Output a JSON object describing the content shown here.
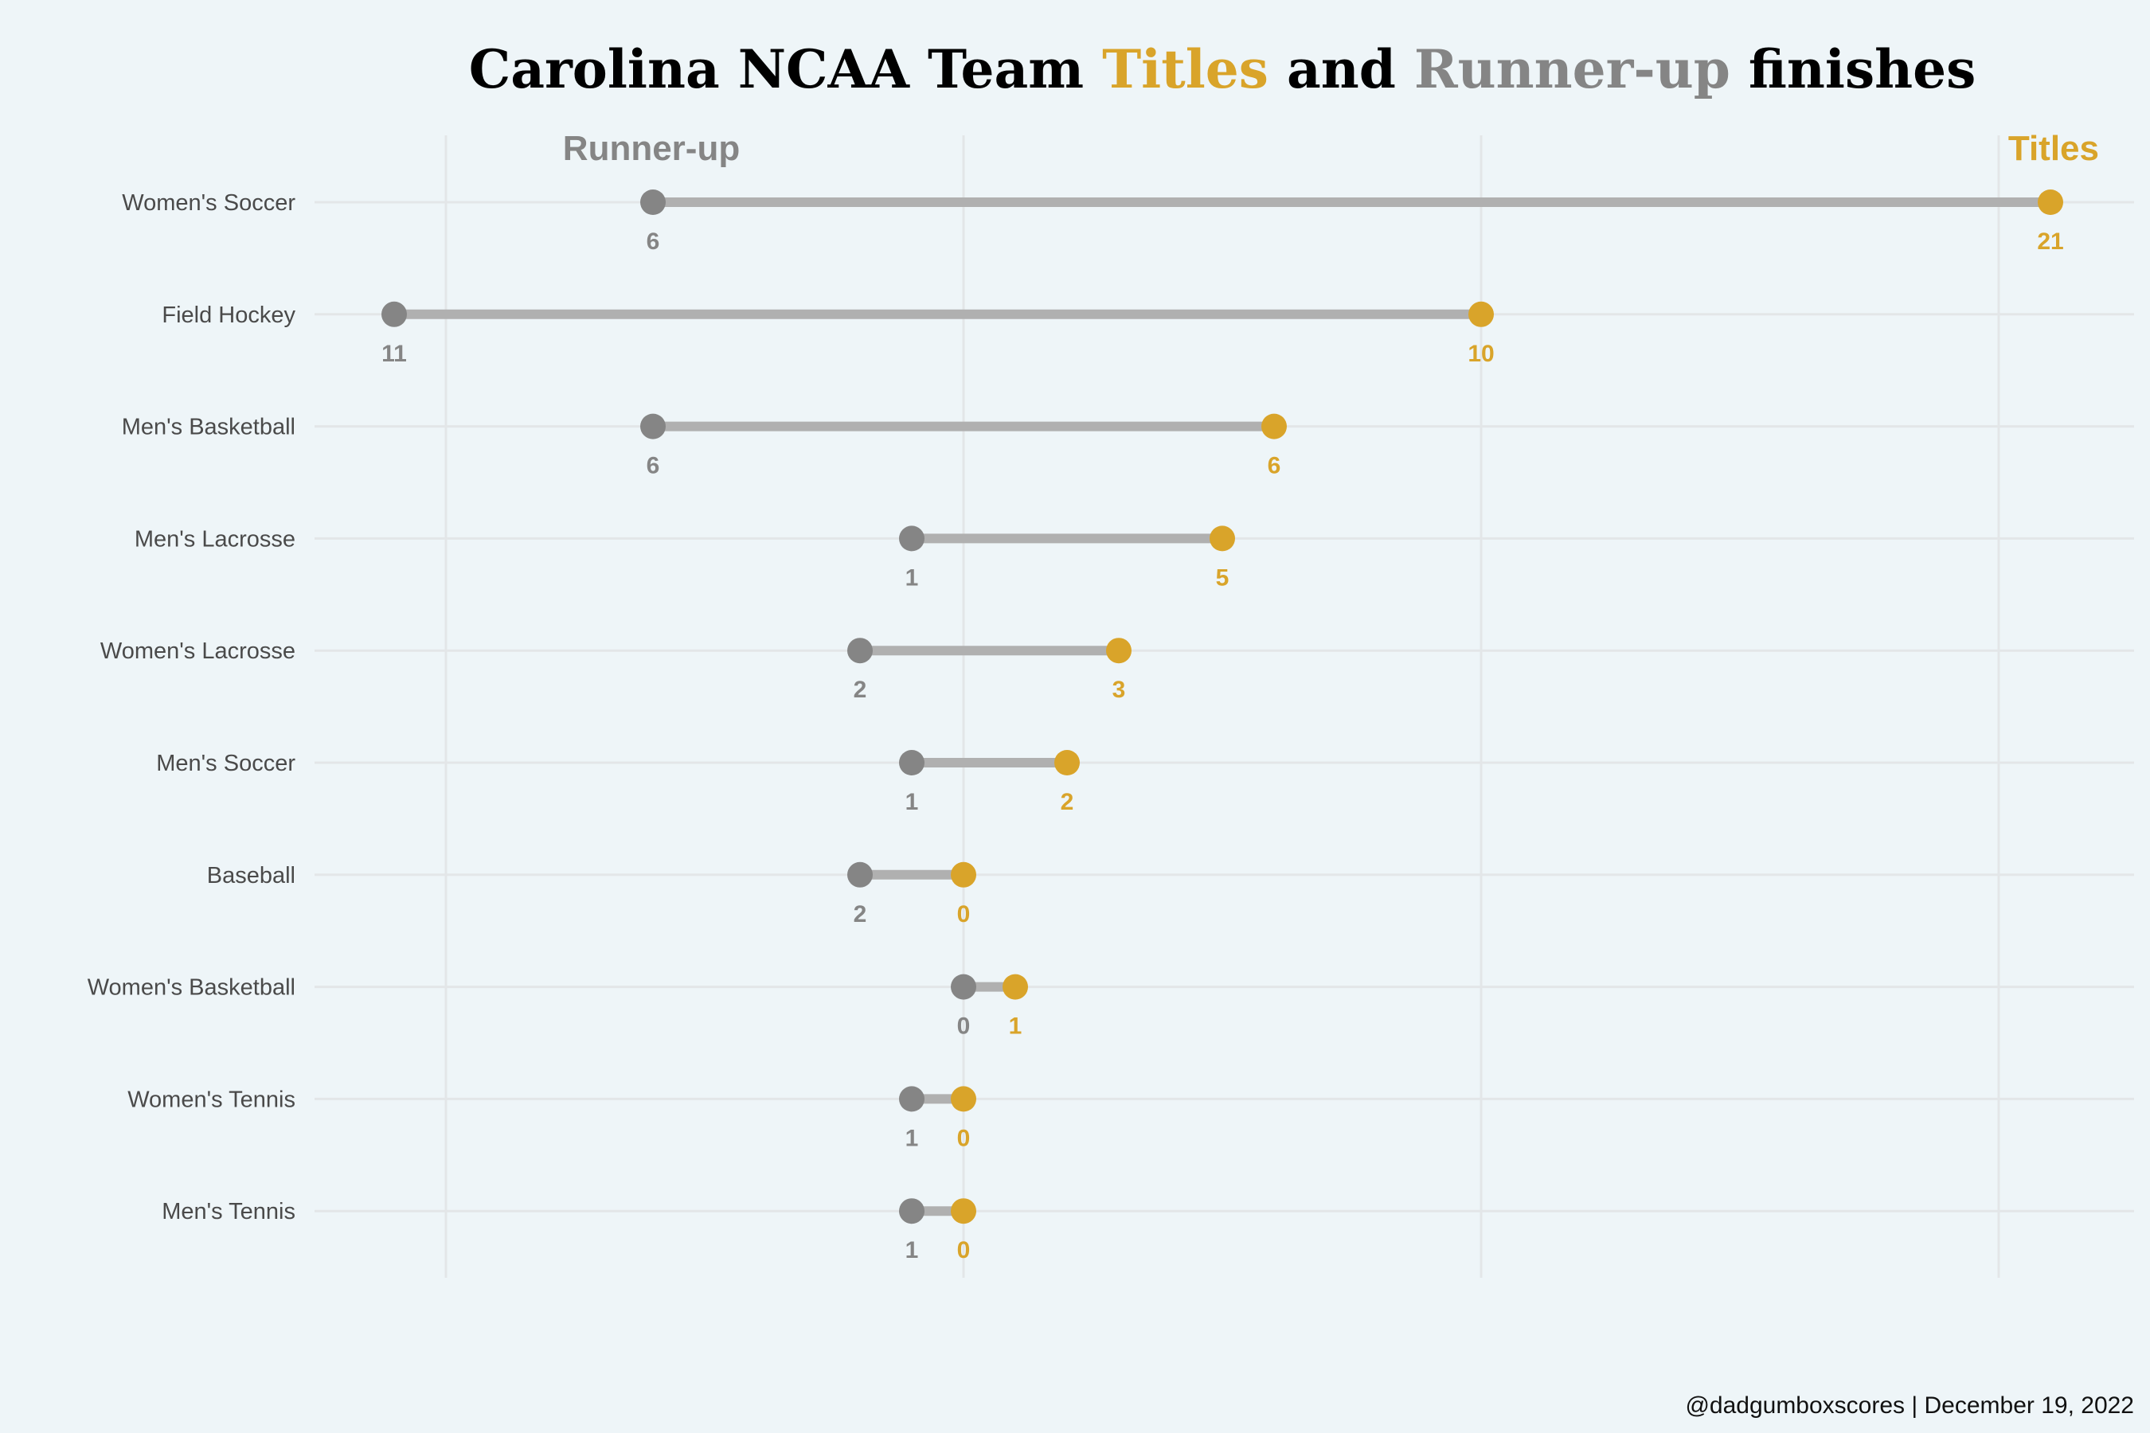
{
  "title": {
    "part1": "Carolina NCAA Team ",
    "part2": "Titles",
    "part3": " and ",
    "part4": "Runner-up",
    "part5": " finishes"
  },
  "caption": "@dadgumboxscores | December 19, 2022",
  "colors": {
    "titles": "#d9a42a",
    "runner_up": "#858585",
    "segment": "#b0b0b0",
    "grid": "#e3e6e8",
    "background": "#eef5f8"
  },
  "chart_data": {
    "type": "dumbbell",
    "categories": [
      "Women's Soccer",
      "Field Hockey",
      "Men's Basketball",
      "Men's Lacrosse",
      "Women's Lacrosse",
      "Men's Soccer",
      "Baseball",
      "Women's Basketball",
      "Women's Tennis",
      "Men's Tennis"
    ],
    "series": [
      {
        "name": "Titles",
        "values": [
          21,
          10,
          6,
          5,
          3,
          2,
          0,
          1,
          0,
          0
        ]
      },
      {
        "name": "Runner-up",
        "values": [
          6,
          11,
          6,
          1,
          2,
          1,
          2,
          0,
          1,
          1
        ]
      }
    ],
    "runner_up_axis": "reversed",
    "xlim": [
      -11.5,
      22
    ],
    "grid": "vertical and horizontal",
    "legend": "labels at top-left (Runner-up) and top-right (Titles)"
  }
}
